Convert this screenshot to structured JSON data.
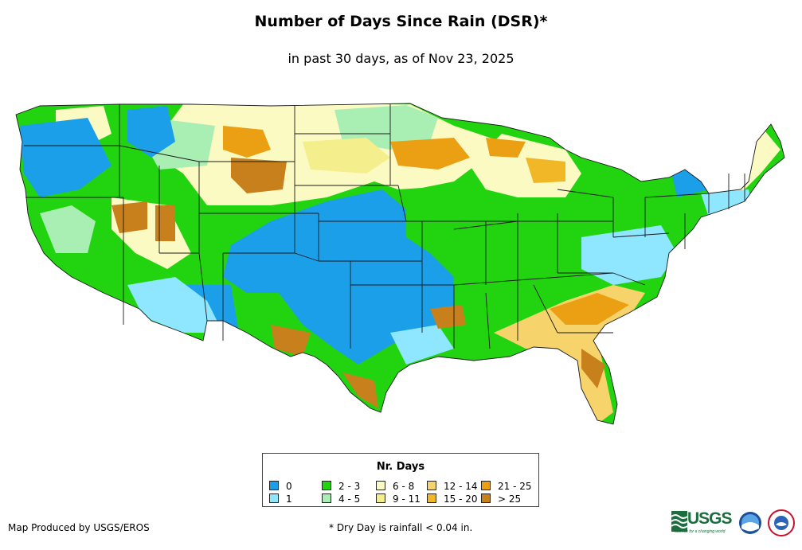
{
  "title": "Number of Days Since Rain (DSR)*",
  "subtitle": "in past 30 days, as of Nov 23, 2025",
  "legend": {
    "title": "Nr. Days",
    "items": [
      {
        "label": "0",
        "color": "#1a9fe8"
      },
      {
        "label": "1",
        "color": "#8fe6ff"
      },
      {
        "label": "2 - 3",
        "color": "#22d40f"
      },
      {
        "label": "4 - 5",
        "color": "#a9efb4"
      },
      {
        "label": "6 - 8",
        "color": "#fafac2"
      },
      {
        "label": "9 - 11",
        "color": "#f5ee8c"
      },
      {
        "label": "12 - 14",
        "color": "#f7d36b"
      },
      {
        "label": "15 - 20",
        "color": "#f2b727"
      },
      {
        "label": "21 - 25",
        "color": "#eb9f12"
      },
      {
        "label": "> 25",
        "color": "#c7801c"
      }
    ]
  },
  "credit": "Map Produced by USGS/EROS",
  "footnote": "* Dry Day is rainfall < 0.04 in.",
  "logos": {
    "usgs": "USGS",
    "usgs_tagline": "science for a changing world",
    "noaa_icon": "noaa-logo-icon",
    "nws_icon": "nws-logo-icon"
  }
}
